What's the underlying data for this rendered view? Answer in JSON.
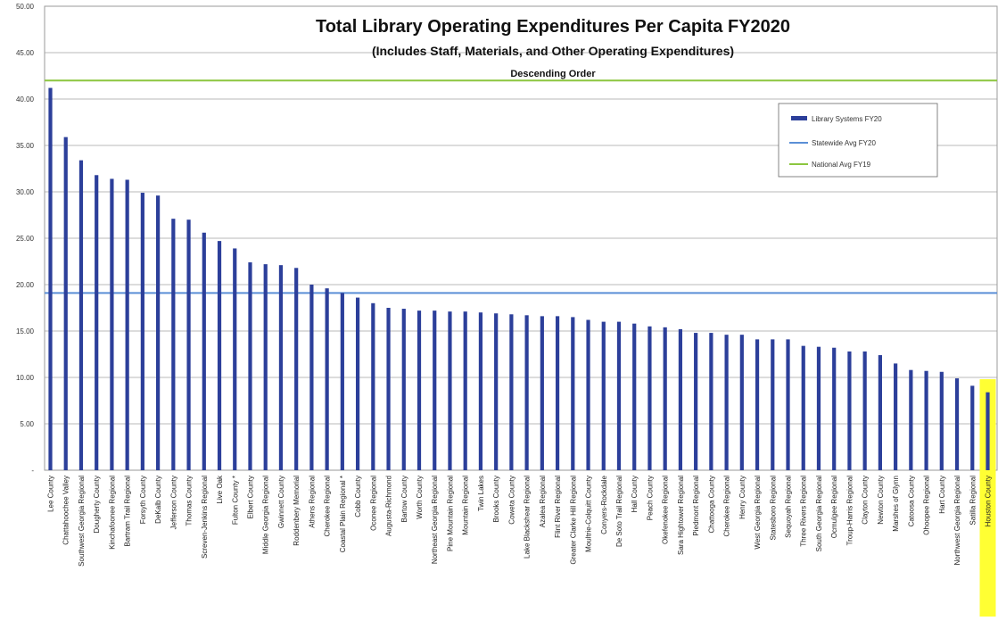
{
  "chart_data": {
    "type": "bar",
    "title": "Total Library Operating Expenditures Per Capita FY2020",
    "subtitle": "(Includes Staff, Materials, and Other Operating Expenditures)",
    "note": "Descending Order",
    "ylim": [
      0,
      50
    ],
    "yticks": [
      "50.00",
      "45.00",
      "40.00",
      "35.00",
      "30.00",
      "25.00",
      "20.00",
      "15.00",
      "10.00",
      "5.00",
      "-"
    ],
    "grid": true,
    "legend_position": "top-right",
    "colors": {
      "bars": "#2c3f9a",
      "statewide": "#5b8fd6",
      "national": "#8cc63f",
      "highlight": "#ffff33"
    },
    "categories": [
      "Lee County",
      "Chattahoochee Valley",
      "Southwest Georgia Regional",
      "Dougherty County",
      "Kinchafoonee Regional",
      "Bartram Trail Regional",
      "Forsyth County",
      "DeKalb County",
      "Jefferson County",
      "Thomas County",
      "Screven-Jenkins Regional",
      "Live Oak",
      "Fulton County *",
      "Elbert County",
      "Middle Georgia Regional",
      "Gwinnett County",
      "Roddenbery Memorial",
      "Athens Regional",
      "Cherokee Regional",
      "Coastal Plain Regional *",
      "Cobb County",
      "Oconee Regional",
      "Augusta-Richmond",
      "Bartow County",
      "Worth County",
      "Northeast Georgia Regional",
      "Pine Mountain Regional",
      "Mountain Regional",
      "Twin Lakes",
      "Brooks County",
      "Coweta County",
      "Lake Blackshear Regional",
      "Azalea Regional",
      "Flint River Regional",
      "Greater Clarke Hill Regional",
      "Moultrie-Colquitt County",
      "Conyers-Rockdale",
      "De Soto Trail Regional",
      "Hall County",
      "Peach County",
      "Okefenokee Regional",
      "Sara Hightower Regional",
      "Piedmont Regional",
      "Chattooga County",
      "Cherokee Regional",
      "Henry County",
      "West Georgia Regional",
      "Statesboro Regional",
      "Sequoyah Regional",
      "Three Rivers Regional",
      "South Georgia Regional",
      "Ocmulgee Regional",
      "Troup-Harris Regional",
      "Clayton County",
      "Newton County",
      "Marshes of Glynn",
      "Catoosa County",
      "Ohoopee Regional",
      "Hart County",
      "Northwest Georgia Regional",
      "Satilla Regional",
      "Houston County"
    ],
    "series": [
      {
        "name": "Library Systems FY20",
        "values": [
          41.2,
          35.9,
          33.4,
          31.8,
          31.4,
          31.3,
          29.9,
          29.6,
          27.1,
          27.0,
          25.6,
          24.7,
          23.9,
          22.4,
          22.2,
          22.1,
          21.8,
          20.0,
          19.6,
          19.1,
          18.6,
          18.0,
          17.5,
          17.4,
          17.2,
          17.2,
          17.1,
          17.1,
          17.0,
          16.9,
          16.8,
          16.7,
          16.6,
          16.6,
          16.5,
          16.2,
          16.0,
          16.0,
          15.8,
          15.5,
          15.4,
          15.2,
          14.8,
          14.8,
          14.6,
          14.6,
          14.1,
          14.1,
          14.1,
          13.4,
          13.3,
          13.2,
          12.8,
          12.8,
          12.4,
          11.5,
          10.8,
          10.7,
          10.6,
          9.9,
          9.1,
          8.4
        ]
      }
    ],
    "reference_lines": [
      {
        "name": "Statewide Avg FY20",
        "value": 19.1
      },
      {
        "name": "National Avg FY19",
        "value": 42.0
      }
    ],
    "highlight_category": "Houston County"
  }
}
